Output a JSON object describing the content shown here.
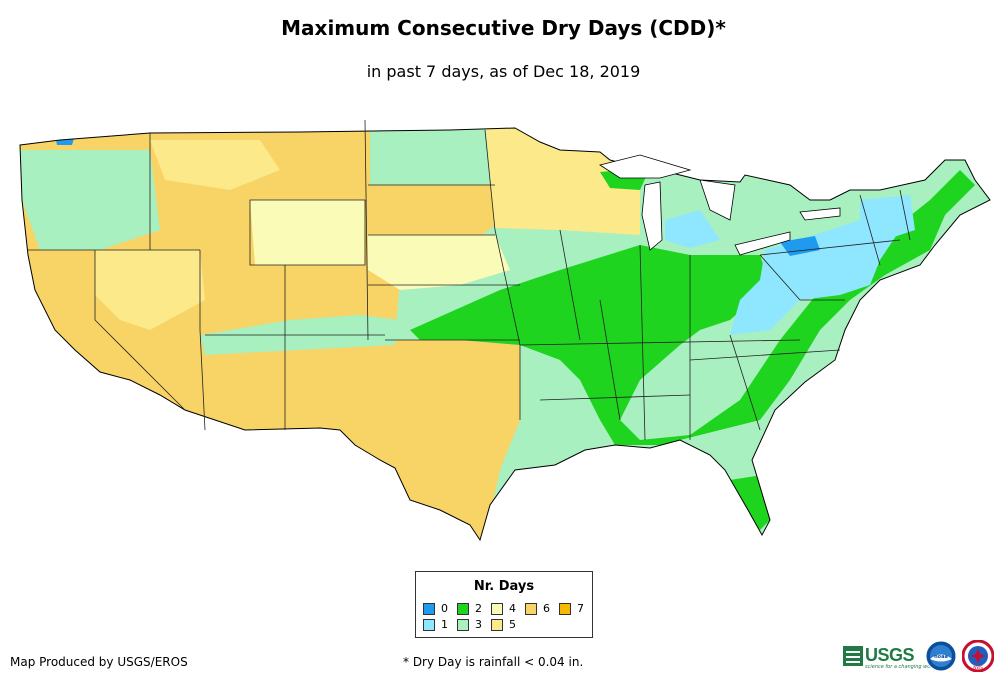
{
  "title": "Maximum Consecutive Dry Days (CDD)*",
  "subtitle": "in past 7 days, as of Dec 18, 2019",
  "legend": {
    "title": "Nr. Days",
    "items": [
      {
        "label": "0",
        "color": "#1e9bef"
      },
      {
        "label": "1",
        "color": "#8fe6ff"
      },
      {
        "label": "2",
        "color": "#1ed41e"
      },
      {
        "label": "3",
        "color": "#a8f0c0"
      },
      {
        "label": "4",
        "color": "#fbfbb8"
      },
      {
        "label": "5",
        "color": "#fbe98a"
      },
      {
        "label": "6",
        "color": "#f8d366"
      },
      {
        "label": "7",
        "color": "#f6b800"
      }
    ]
  },
  "footer": {
    "producer": "Map Produced by USGS/EROS",
    "note": "* Dry Day is rainfall < 0.04 in."
  },
  "logos": {
    "usgs": "USGS",
    "usgs_tagline": "science for a changing world",
    "noaa": "noaa",
    "nws": "NWS"
  }
}
